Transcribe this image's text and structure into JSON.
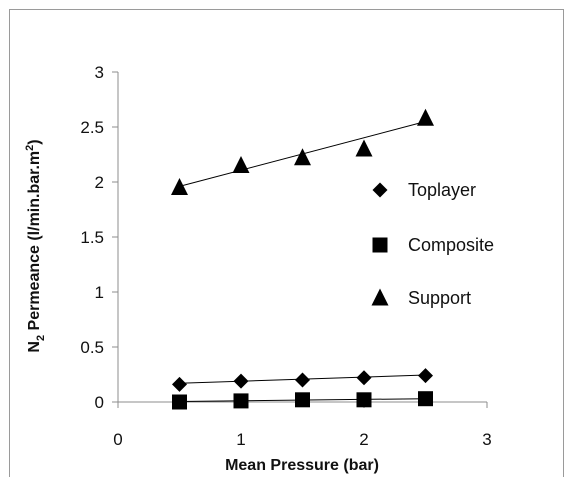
{
  "chart_data": {
    "type": "scatter",
    "xlabel": "Mean Pressure (bar)",
    "ylabel": {
      "prefix": "N",
      "subscript": "2",
      "middle": " Permeance (l/min.bar.m",
      "superscript": "2",
      "suffix": ")"
    },
    "xlim": [
      0,
      3
    ],
    "ylim": [
      0,
      3
    ],
    "xticks": [
      "0",
      "1",
      "2",
      "3"
    ],
    "yticks": [
      "0",
      "0.5",
      "1",
      "1.5",
      "2",
      "2.5",
      "3"
    ],
    "grid": false,
    "legend_position": "right",
    "series": [
      {
        "name": "Toplayer",
        "marker": "diamond",
        "color": "#000000",
        "x": [
          0.5,
          1,
          1.5,
          2,
          2.5
        ],
        "y": [
          0.16,
          0.19,
          0.2,
          0.22,
          0.24
        ],
        "trendline": [
          [
            0.5,
            0.17
          ],
          [
            2.5,
            0.245
          ]
        ]
      },
      {
        "name": "Composite",
        "marker": "square",
        "color": "#000000",
        "x": [
          0.5,
          1,
          1.5,
          2,
          2.5
        ],
        "y": [
          0.0,
          0.01,
          0.02,
          0.02,
          0.03
        ],
        "trendline": [
          [
            0.5,
            0.005
          ],
          [
            2.5,
            0.03
          ]
        ]
      },
      {
        "name": "Support",
        "marker": "triangle",
        "color": "#000000",
        "x": [
          0.5,
          1,
          1.5,
          2,
          2.5
        ],
        "y": [
          1.95,
          2.15,
          2.22,
          2.3,
          2.58
        ],
        "trendline": [
          [
            0.5,
            1.96
          ],
          [
            2.5,
            2.55
          ]
        ]
      }
    ]
  }
}
